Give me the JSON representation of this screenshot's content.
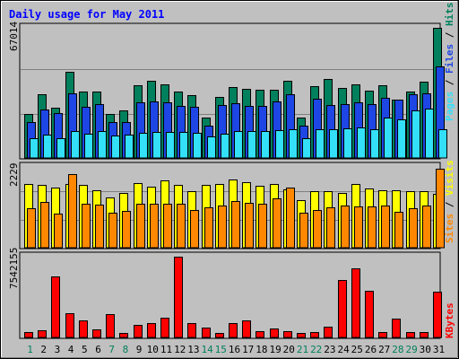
{
  "chart_data": [
    {
      "type": "bar",
      "title": "Daily usage for May 2011",
      "categories": [
        "1",
        "2",
        "3",
        "4",
        "5",
        "6",
        "7",
        "8",
        "9",
        "10",
        "11",
        "12",
        "13",
        "14",
        "15",
        "16",
        "17",
        "18",
        "19",
        "20",
        "21",
        "22",
        "23",
        "24",
        "25",
        "26",
        "27",
        "28",
        "29",
        "30",
        "31"
      ],
      "weekend_days": [
        "1",
        "7",
        "8",
        "14",
        "15",
        "21",
        "22",
        "28",
        "29"
      ],
      "ymax_label": "67014",
      "ymax": 67014,
      "legend": [
        "Pages",
        "Files",
        "Hits"
      ],
      "legend_separator": " / ",
      "series": [
        {
          "name": "Hits",
          "color": "#00805c",
          "values": [
            22800,
            33000,
            26000,
            44500,
            34000,
            34200,
            22800,
            24300,
            37500,
            39800,
            38100,
            34400,
            32500,
            20800,
            31500,
            36500,
            35700,
            35000,
            35300,
            39700,
            20700,
            37200,
            40500,
            36200,
            38000,
            34600,
            37500,
            30000,
            34200,
            39400,
            67000
          ]
        },
        {
          "name": "Files",
          "color": "#1d46e4",
          "values": [
            18600,
            24800,
            23000,
            33200,
            26500,
            27900,
            18600,
            18500,
            28700,
            29100,
            28500,
            27000,
            26400,
            16500,
            27400,
            28100,
            26600,
            26600,
            29200,
            32700,
            16500,
            30400,
            27100,
            27800,
            28700,
            27500,
            30900,
            29900,
            33000,
            33500,
            47000
          ]
        },
        {
          "name": "Pages",
          "color": "#33e0f8",
          "values": [
            10200,
            11800,
            10300,
            14000,
            12700,
            13700,
            11400,
            12000,
            13000,
            13400,
            13300,
            13400,
            12900,
            11300,
            12300,
            14000,
            13700,
            14000,
            14400,
            14600,
            10100,
            14600,
            14800,
            15100,
            15900,
            14900,
            20600,
            19700,
            24500,
            25300,
            15000
          ]
        }
      ]
    },
    {
      "type": "bar",
      "ymax_label": "2229",
      "ymax": 2229,
      "legend": [
        "Sites",
        "Visits"
      ],
      "legend_separator": " / ",
      "series": [
        {
          "name": "Visits",
          "color": "#ffff00",
          "values": [
            1750,
            1730,
            1650,
            1750,
            1730,
            1580,
            1380,
            1500,
            1780,
            1690,
            1860,
            1730,
            1570,
            1730,
            1760,
            1890,
            1820,
            1720,
            1750,
            1600,
            1310,
            1550,
            1550,
            1510,
            1770,
            1640,
            1590,
            1590,
            1560,
            1570,
            1480
          ]
        },
        {
          "name": "Sites",
          "color": "#ff8800",
          "values": [
            1080,
            1270,
            930,
            2040,
            1220,
            1180,
            960,
            1010,
            1220,
            1210,
            1210,
            1210,
            1050,
            1120,
            1160,
            1300,
            1250,
            1210,
            1350,
            1670,
            960,
            1050,
            1110,
            1170,
            1150,
            1140,
            1170,
            990,
            1080,
            1160,
            2170
          ]
        }
      ]
    },
    {
      "type": "bar",
      "ymax_label": "7542155",
      "ymax": 7542155,
      "legend": [
        "KBytes"
      ],
      "series": [
        {
          "name": "KBytes",
          "color": "#ff0000",
          "values": [
            520000,
            630000,
            5690000,
            2300000,
            1610000,
            770000,
            2190000,
            410000,
            1200000,
            1380000,
            1870000,
            7542000,
            1380000,
            890000,
            440000,
            1300000,
            1570000,
            610000,
            850000,
            610000,
            400000,
            480000,
            1030000,
            5390000,
            6460000,
            4370000,
            520000,
            1800000,
            520000,
            520000,
            4300000
          ]
        }
      ]
    }
  ]
}
